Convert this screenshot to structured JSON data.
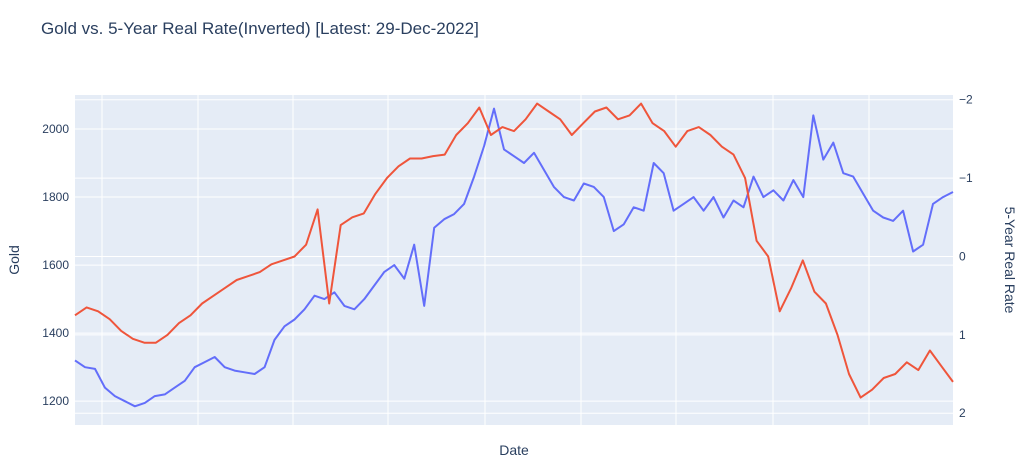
{
  "chart_data": {
    "type": "line",
    "title": "Gold vs. 5-Year Real Rate(Inverted) [Latest: 29-Dec-2022]",
    "xlabel": "Date",
    "ylabel": "Gold",
    "y2label": "5-Year Real Rate",
    "y2_inverted": true,
    "x_tick_labels_shown": false,
    "grid": true,
    "ylim": [
      1130,
      2100
    ],
    "y2lim": [
      -2.06,
      2.15
    ],
    "yticks": [
      1200,
      1400,
      1600,
      1800,
      2000
    ],
    "y2ticks": [
      -2,
      -1,
      0,
      1,
      2
    ],
    "y2tick_labels": [
      "−2",
      "−1",
      "0",
      "1",
      "2"
    ],
    "colors": {
      "gold": "#636efa",
      "real_rate": "#ef553b",
      "plot_bg": "#e5ecf6",
      "grid": "#ffffff",
      "text": "#2a3f5f"
    },
    "series": [
      {
        "name": "Gold",
        "axis": "y",
        "color": "#636efa",
        "values": [
          1320,
          1300,
          1295,
          1240,
          1215,
          1200,
          1185,
          1195,
          1215,
          1220,
          1240,
          1260,
          1300,
          1315,
          1330,
          1300,
          1290,
          1285,
          1280,
          1300,
          1380,
          1420,
          1440,
          1470,
          1510,
          1500,
          1520,
          1480,
          1470,
          1500,
          1540,
          1580,
          1600,
          1560,
          1660,
          1480,
          1710,
          1735,
          1750,
          1780,
          1860,
          1950,
          2060,
          1940,
          1920,
          1900,
          1930,
          1880,
          1830,
          1800,
          1790,
          1840,
          1830,
          1800,
          1700,
          1720,
          1770,
          1760,
          1900,
          1870,
          1760,
          1780,
          1800,
          1760,
          1800,
          1740,
          1790,
          1770,
          1860,
          1800,
          1820,
          1790,
          1850,
          1800,
          2040,
          1910,
          1960,
          1870,
          1860,
          1810,
          1760,
          1740,
          1730,
          1760,
          1640,
          1660,
          1780,
          1800,
          1815
        ]
      },
      {
        "name": "5-Year Real Rate",
        "axis": "y2",
        "color": "#ef553b",
        "values": [
          0.75,
          0.65,
          0.7,
          0.8,
          0.95,
          1.05,
          1.1,
          1.1,
          1.0,
          0.85,
          0.75,
          0.6,
          0.5,
          0.4,
          0.3,
          0.25,
          0.2,
          0.1,
          0.05,
          0.0,
          -0.15,
          -0.6,
          0.6,
          -0.4,
          -0.5,
          -0.55,
          -0.8,
          -1.0,
          -1.15,
          -1.25,
          -1.25,
          -1.28,
          -1.3,
          -1.55,
          -1.7,
          -1.9,
          -1.55,
          -1.65,
          -1.6,
          -1.75,
          -1.95,
          -1.85,
          -1.75,
          -1.55,
          -1.7,
          -1.85,
          -1.9,
          -1.75,
          -1.8,
          -1.95,
          -1.7,
          -1.6,
          -1.4,
          -1.6,
          -1.65,
          -1.55,
          -1.4,
          -1.3,
          -1.0,
          -0.2,
          0.0,
          0.7,
          0.4,
          0.05,
          0.45,
          0.6,
          1.0,
          1.5,
          1.8,
          1.7,
          1.55,
          1.5,
          1.35,
          1.45,
          1.2,
          1.4,
          1.6
        ]
      }
    ]
  }
}
